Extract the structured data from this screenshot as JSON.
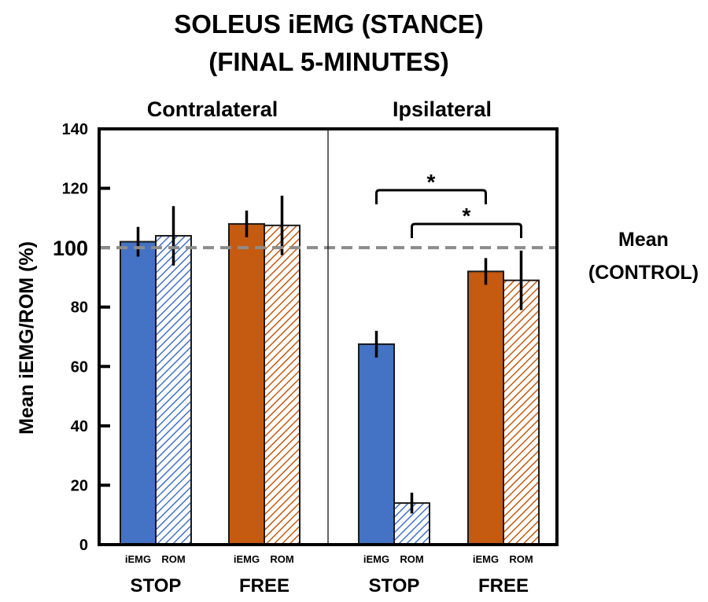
{
  "chart_data": {
    "type": "bar",
    "title_lines": [
      "SOLEUS iEMG (STANCE)",
      "(FINAL 5-MINUTES)"
    ],
    "ylabel": "Mean iEMG/ROM (%)",
    "ylim": [
      0,
      140
    ],
    "yticks": [
      0,
      20,
      40,
      60,
      80,
      100,
      120,
      140
    ],
    "panels": [
      {
        "label": "Contralateral",
        "groups": [
          {
            "label": "STOP",
            "color": "#4472C4",
            "bars": [
              {
                "label": "iEMG",
                "value": 102,
                "error": 5,
                "hatched": false
              },
              {
                "label": "ROM",
                "value": 104,
                "error": 10,
                "hatched": true
              }
            ]
          },
          {
            "label": "FREE",
            "color": "#C55A11",
            "bars": [
              {
                "label": "iEMG",
                "value": 108,
                "error": 4.5,
                "hatched": false
              },
              {
                "label": "ROM",
                "value": 107.5,
                "error": 10,
                "hatched": true
              }
            ]
          }
        ]
      },
      {
        "label": "Ipsilateral",
        "groups": [
          {
            "label": "STOP",
            "color": "#4472C4",
            "bars": [
              {
                "label": "iEMG",
                "value": 67.5,
                "error": 4.5,
                "hatched": false
              },
              {
                "label": "ROM",
                "value": 14,
                "error": 3.5,
                "hatched": true
              }
            ]
          },
          {
            "label": "FREE",
            "color": "#C55A11",
            "bars": [
              {
                "label": "iEMG",
                "value": 92,
                "error": 4.5,
                "hatched": false
              },
              {
                "label": "ROM",
                "value": 89,
                "error": 10,
                "hatched": true
              }
            ]
          }
        ]
      }
    ],
    "reference_line": {
      "value": 100,
      "label_lines": [
        "Mean",
        "(CONTROL)"
      ],
      "color": "#8C8C8C"
    },
    "significance": [
      {
        "panel": 1,
        "from": "STOP iEMG",
        "to": "FREE iEMG",
        "label": "*"
      },
      {
        "panel": 1,
        "from": "STOP ROM",
        "to": "FREE ROM",
        "label": "*"
      }
    ]
  }
}
